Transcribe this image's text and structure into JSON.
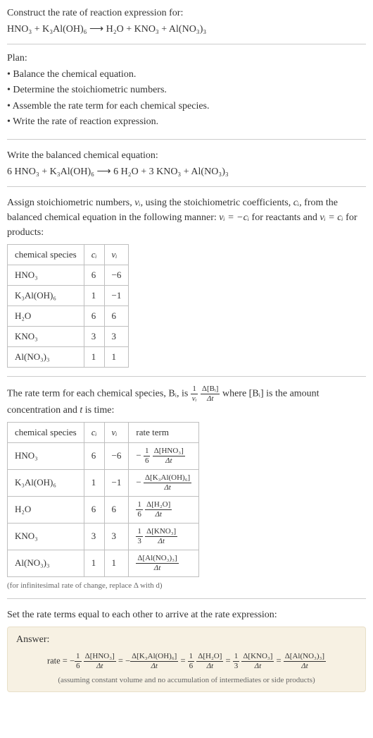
{
  "intro": {
    "line1": "Construct the rate of reaction expression for:",
    "equation": "HNO₃ + K₃Al(OH)₆ ⟶ H₂O + KNO₃ + Al(NO₃)₃"
  },
  "plan": {
    "title": "Plan:",
    "items": [
      "• Balance the chemical equation.",
      "• Determine the stoichiometric numbers.",
      "• Assemble the rate term for each chemical species.",
      "• Write the rate of reaction expression."
    ]
  },
  "balanced": {
    "title": "Write the balanced chemical equation:",
    "equation": "6 HNO₃ + K₃Al(OH)₆ ⟶ 6 H₂O + 3 KNO₃ + Al(NO₃)₃"
  },
  "assign": {
    "para_a": "Assign stoichiometric numbers, ",
    "nu_i": "νᵢ",
    "para_b": ", using the stoichiometric coefficients, ",
    "c_i": "cᵢ",
    "para_c": ", from the balanced chemical equation in the following manner: ",
    "rel1": "νᵢ = −cᵢ",
    "para_d": " for reactants and ",
    "rel2": "νᵢ = cᵢ",
    "para_e": " for products:"
  },
  "table1": {
    "headers": [
      "chemical species",
      "cᵢ",
      "νᵢ"
    ],
    "rows": [
      [
        "HNO₃",
        "6",
        "−6"
      ],
      [
        "K₃Al(OH)₆",
        "1",
        "−1"
      ],
      [
        "H₂O",
        "6",
        "6"
      ],
      [
        "KNO₃",
        "3",
        "3"
      ],
      [
        "Al(NO₃)₃",
        "1",
        "1"
      ]
    ]
  },
  "rateterm": {
    "a": "The rate term for each chemical species, Bᵢ, is ",
    "b": " where [Bᵢ] is the amount concentration and ",
    "t": "t",
    "c": " is time:",
    "coef_num": "1",
    "coef_den": "νᵢ",
    "delta_num": "Δ[Bᵢ]",
    "delta_den": "Δt"
  },
  "table2": {
    "headers": [
      "chemical species",
      "cᵢ",
      "νᵢ",
      "rate term"
    ],
    "rows": [
      {
        "sp": "HNO₃",
        "c": "6",
        "nu": "−6",
        "sign": "−",
        "coef_num": "1",
        "coef_den": "6",
        "dnum": "Δ[HNO₃]",
        "dden": "Δt"
      },
      {
        "sp": "K₃Al(OH)₆",
        "c": "1",
        "nu": "−1",
        "sign": "−",
        "coef_num": "",
        "coef_den": "",
        "dnum": "Δ[K₃Al(OH)₆]",
        "dden": "Δt"
      },
      {
        "sp": "H₂O",
        "c": "6",
        "nu": "6",
        "sign": "",
        "coef_num": "1",
        "coef_den": "6",
        "dnum": "Δ[H₂O]",
        "dden": "Δt"
      },
      {
        "sp": "KNO₃",
        "c": "3",
        "nu": "3",
        "sign": "",
        "coef_num": "1",
        "coef_den": "3",
        "dnum": "Δ[KNO₃]",
        "dden": "Δt"
      },
      {
        "sp": "Al(NO₃)₃",
        "c": "1",
        "nu": "1",
        "sign": "",
        "coef_num": "",
        "coef_den": "",
        "dnum": "Δ[Al(NO₃)₃]",
        "dden": "Δt"
      }
    ],
    "footnote": "(for infinitesimal rate of change, replace Δ with d)"
  },
  "finalline": "Set the rate terms equal to each other to arrive at the rate expression:",
  "answer": {
    "title": "Answer:",
    "prefix": "rate = ",
    "terms": [
      {
        "sign": "−",
        "coef_num": "1",
        "coef_den": "6",
        "dnum": "Δ[HNO₃]",
        "dden": "Δt"
      },
      {
        "sign": "= −",
        "coef_num": "",
        "coef_den": "",
        "dnum": "Δ[K₃Al(OH)₆]",
        "dden": "Δt"
      },
      {
        "sign": "= ",
        "coef_num": "1",
        "coef_den": "6",
        "dnum": "Δ[H₂O]",
        "dden": "Δt"
      },
      {
        "sign": "= ",
        "coef_num": "1",
        "coef_den": "3",
        "dnum": "Δ[KNO₃]",
        "dden": "Δt"
      },
      {
        "sign": "= ",
        "coef_num": "",
        "coef_den": "",
        "dnum": "Δ[Al(NO₃)₃]",
        "dden": "Δt"
      }
    ],
    "note": "(assuming constant volume and no accumulation of intermediates or side products)"
  },
  "colors": {
    "text": "#333333",
    "rule": "#cccccc",
    "table_border": "#bfbfbf",
    "answer_bg": "#f7f1e3",
    "answer_border": "#e8dfc8",
    "footnote": "#666666"
  }
}
